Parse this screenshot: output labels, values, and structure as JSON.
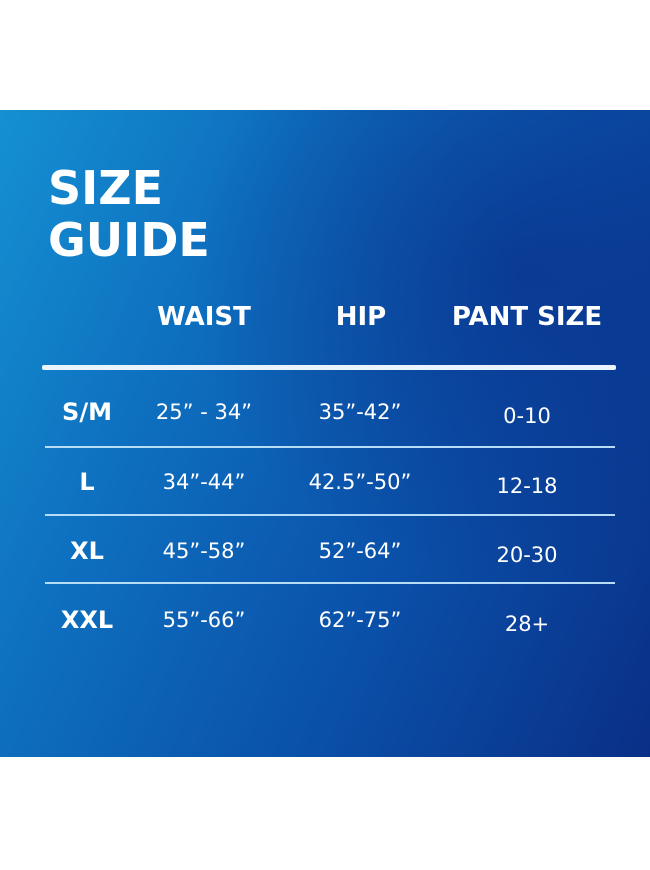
{
  "title": [
    "SIZE",
    "GUIDE"
  ],
  "headers": [
    "WAIST",
    "HIP",
    "PANT SIZE"
  ],
  "rows": [
    {
      "size": "S/M",
      "waist": "25” - 34”",
      "hip": "35”-42”",
      "pant": "0-10"
    },
    {
      "size": "L",
      "waist": "34”-44”",
      "hip": "42.5”-50”",
      "pant": "12-18"
    },
    {
      "size": "XL",
      "waist": "45”-58”",
      "hip": "52”-64”",
      "pant": "20-30"
    },
    {
      "size": "XXL",
      "waist": "55”-66”",
      "hip": "62”-75”",
      "pant": "28+"
    }
  ],
  "colors": {
    "background_light": "#1590d2",
    "background_dark": "#0a2f86",
    "text": "#ffffff"
  }
}
